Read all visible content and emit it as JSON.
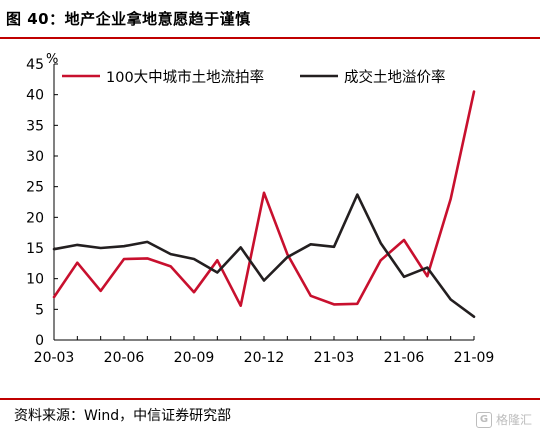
{
  "header": {
    "title": "图 40：地产企业拿地意愿趋于谨慎"
  },
  "footer": {
    "source": "资料来源：Wind，中信证券研究部",
    "watermark": "格隆汇"
  },
  "colors": {
    "series1": "#c8102e",
    "series2": "#231f20",
    "rule": "#c00000"
  },
  "chart_data": {
    "type": "line",
    "y_unit": "%",
    "ylim": [
      0,
      45
    ],
    "yticks": [
      0,
      5,
      10,
      15,
      20,
      25,
      30,
      35,
      40,
      45
    ],
    "x": [
      "20-03",
      "20-04",
      "20-05",
      "20-06",
      "20-07",
      "20-08",
      "20-09",
      "20-10",
      "20-11",
      "20-12",
      "21-01",
      "21-02",
      "21-03",
      "21-04",
      "21-05",
      "21-06",
      "21-07",
      "21-08",
      "21-09"
    ],
    "xticks": [
      "20-03",
      "20-06",
      "20-09",
      "20-12",
      "21-03",
      "21-06",
      "21-09"
    ],
    "legend_position": "top",
    "grid": false,
    "series": [
      {
        "name": "100大中城市土地流拍率",
        "color": "#c8102e",
        "values": [
          7.0,
          12.6,
          8.0,
          13.2,
          13.3,
          12.0,
          7.8,
          13.0,
          5.6,
          24.0,
          14.0,
          7.2,
          5.8,
          5.9,
          13.0,
          16.3,
          10.4,
          23.0,
          40.5
        ]
      },
      {
        "name": "成交土地溢价率",
        "color": "#231f20",
        "values": [
          14.8,
          15.5,
          15.0,
          15.3,
          16.0,
          14.0,
          13.2,
          11.0,
          15.1,
          9.7,
          13.5,
          15.6,
          15.2,
          23.7,
          15.8,
          10.3,
          11.8,
          6.6,
          3.8
        ]
      }
    ]
  }
}
